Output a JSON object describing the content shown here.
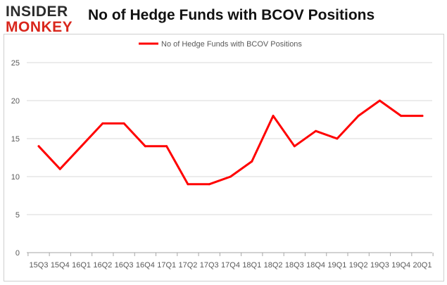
{
  "logo": {
    "line1": "INSIDER",
    "line2": "MONKEY"
  },
  "chart_data": {
    "type": "line",
    "title": "No of Hedge Funds with BCOV Positions",
    "xlabel": "",
    "ylabel": "",
    "categories": [
      "15Q3",
      "15Q4",
      "16Q1",
      "16Q2",
      "16Q3",
      "16Q4",
      "17Q1",
      "17Q2",
      "17Q3",
      "17Q4",
      "18Q1",
      "18Q2",
      "18Q3",
      "18Q4",
      "19Q1",
      "19Q2",
      "19Q3",
      "19Q4",
      "20Q1"
    ],
    "series": [
      {
        "name": "No of Hedge Funds with BCOV Positions",
        "values": [
          14,
          11,
          14,
          17,
          17,
          14,
          14,
          9,
          9,
          10,
          12,
          18,
          14,
          16,
          15,
          18,
          20,
          18,
          18
        ]
      }
    ],
    "ylim": [
      0,
      25
    ],
    "yticks": [
      0,
      5,
      10,
      15,
      20,
      25
    ],
    "grid": true,
    "legend_position": "top",
    "colors": {
      "line": "#ff0000",
      "grid": "#d9d9d9",
      "axis": "#a6a6a6",
      "text": "#595959"
    }
  }
}
